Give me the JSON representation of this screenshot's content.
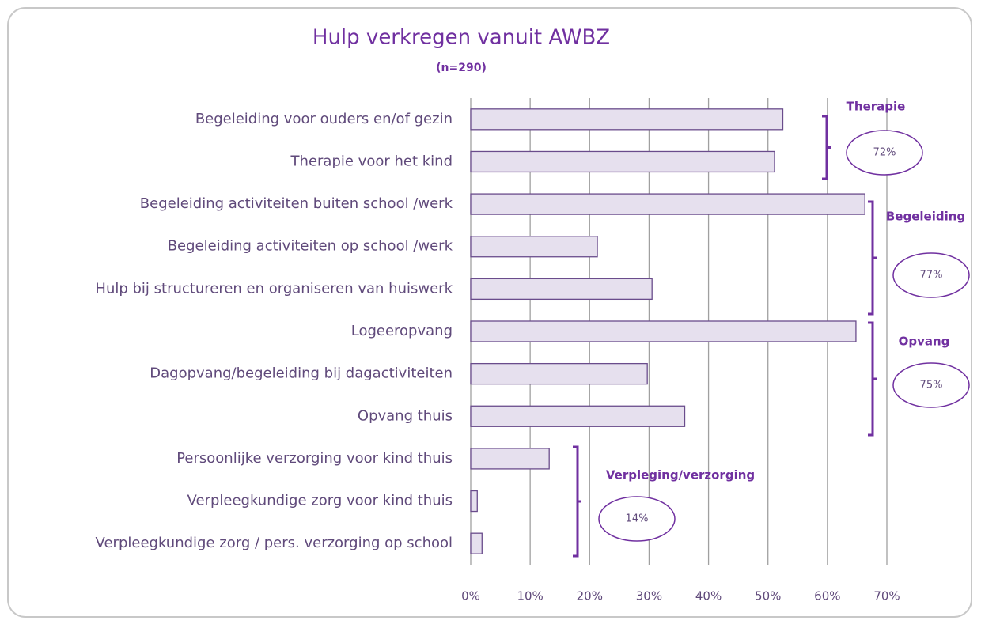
{
  "chart_data": {
    "type": "bar",
    "orientation": "horizontal",
    "title": "Hulp verkregen vanuit AWBZ",
    "subtitle": "(n=290)",
    "categories": [
      "Begeleiding voor ouders en/of gezin",
      "Therapie voor het kind",
      "Begeleiding activiteiten buiten school /werk",
      "Begeleiding activiteiten op school /werk",
      "Hulp bij structureren en organiseren van huiswerk",
      "Logeeropvang",
      "Dagopvang/begeleiding bij dagactiviteiten",
      "Opvang thuis",
      "Persoonlijke verzorging voor kind thuis",
      "Verpleegkundige zorg voor kind thuis",
      "Verpleegkundige zorg / pers. verzorging op school"
    ],
    "values": [
      52.5,
      51.1,
      66.3,
      21.3,
      30.5,
      64.8,
      29.7,
      36.0,
      13.2,
      1.1,
      1.9
    ],
    "color": "#e6e0ee",
    "xlim": [
      0,
      70
    ],
    "xticks": [
      {
        "value": 0,
        "label": "0%"
      },
      {
        "value": 10,
        "label": "10%"
      },
      {
        "value": 20,
        "label": "20%"
      },
      {
        "value": 30,
        "label": "30%"
      },
      {
        "value": 40,
        "label": "40%"
      },
      {
        "value": 50,
        "label": "50%"
      },
      {
        "value": 60,
        "label": "60%"
      },
      {
        "value": 70,
        "label": "70%"
      }
    ],
    "grid": true,
    "annotations": [
      {
        "name": "Therapie",
        "total": "72%"
      },
      {
        "name": "Begeleiding",
        "total": "77%"
      },
      {
        "name": "Opvang",
        "total": "75%"
      },
      {
        "name": "Verpleging/verzorging",
        "total": "14%"
      }
    ]
  }
}
